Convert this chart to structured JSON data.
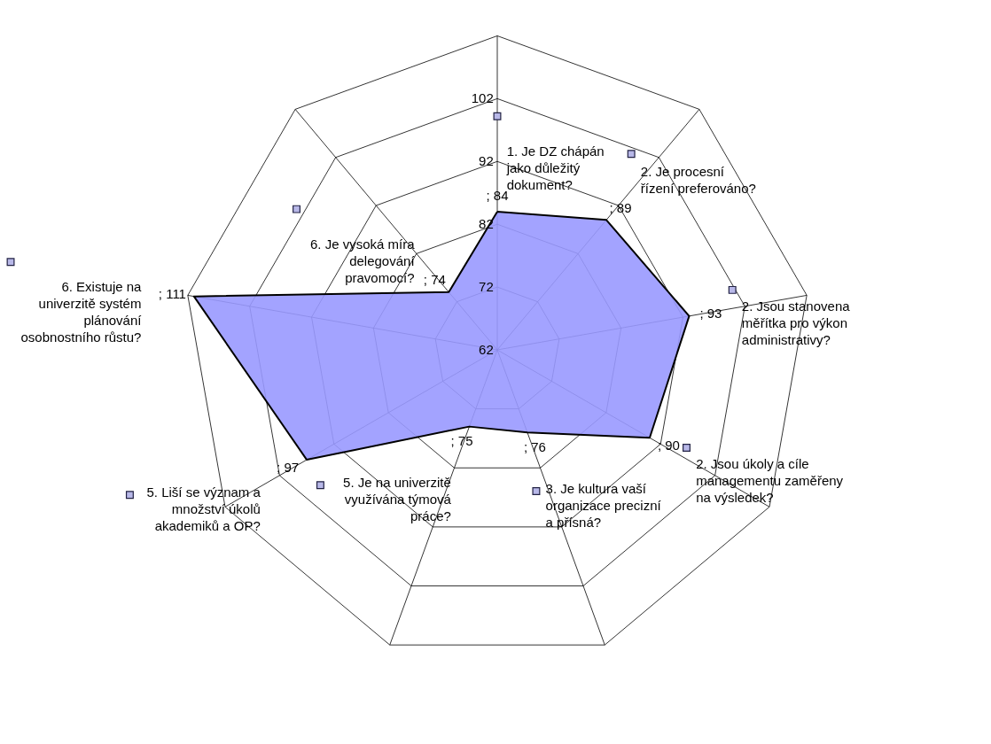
{
  "chart_data": {
    "type": "radar",
    "categories": [
      "1. Je DZ chápán jako důležitý dokument?",
      "2. Je procesní řízení preferováno?",
      "2. Jsou stanovena měřítka pro výkon administrativy?",
      "2. Jsou úkoly a cíle managementu zaměřeny na výsledek?",
      "3. Je kultura vaší organizace precizní a přísná?",
      "5. Je na univerzitě využívána týmová práce?",
      "5. Liší se význam a množství úkolů akademiků a OP?",
      "6. Existuje na univerzitě systém plánování osobnostního růstu?",
      "6. Je vysoká míra delegování pravomocí?"
    ],
    "series": [
      {
        "color": "#9999ff",
        "values": [
          84,
          89,
          93,
          90,
          76,
          75,
          97,
          111,
          74
        ],
        "value_labels": [
          "; 84",
          "; 89",
          "; 93",
          "; 90",
          "; 76",
          "; 75",
          "; 97",
          "; 111",
          "; 74"
        ]
      }
    ],
    "ylim": [
      62,
      112
    ],
    "yticks": [
      62,
      72,
      82,
      92,
      102
    ],
    "grid": true,
    "legend": false
  }
}
